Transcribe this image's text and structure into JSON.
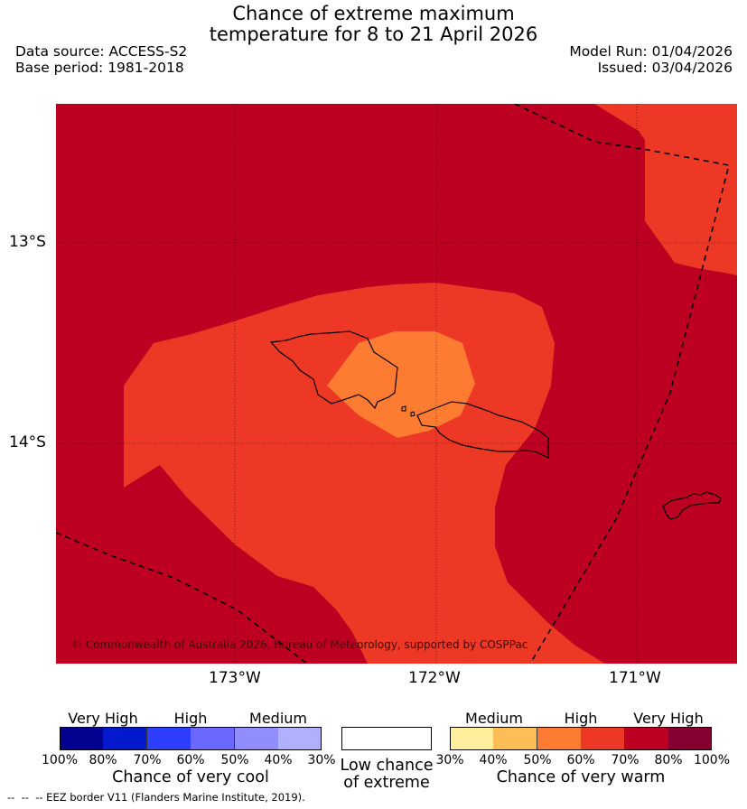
{
  "title": {
    "line1": "Chance of extreme maximum",
    "line2": "temperature for 8 to 21 April 2026"
  },
  "meta": {
    "data_source": "Data source: ACCESS-S2",
    "base_period": "Base period: 1981-2018",
    "model_run": "Model Run: 01/04/2026",
    "issued": "Issued: 03/04/2026"
  },
  "map": {
    "lat_labels": [
      "13°S",
      "14°S"
    ],
    "lon_labels": [
      "173°W",
      "172°W",
      "171°W"
    ],
    "copyright": "© Commonwealth of Australia 2026, Bureau of Meteorology, supported by COSPPac",
    "colors": {
      "very_high": "#bd0022",
      "high": "#ec3824",
      "medium": "#fe7b32"
    }
  },
  "legend_cool": {
    "categories": [
      "Very High",
      "High",
      "Medium"
    ],
    "ticks": [
      "100%",
      "80%",
      "70%",
      "60%",
      "50%",
      "40%",
      "30%"
    ],
    "colors": [
      "#02008e",
      "#0419cd",
      "#2e3eff",
      "#6a68ff",
      "#908dff",
      "#b1b0ff"
    ],
    "caption": "Chance of very cool"
  },
  "legend_low": {
    "caption_line1": "Low chance",
    "caption_line2": "of extreme",
    "color": "#ffffff"
  },
  "legend_warm": {
    "categories": [
      "Medium",
      "High",
      "Very High"
    ],
    "ticks": [
      "30%",
      "40%",
      "50%",
      "60%",
      "70%",
      "80%",
      "100%"
    ],
    "colors": [
      "#ffee9e",
      "#fdbe55",
      "#fe7b32",
      "#ec3824",
      "#bd0022",
      "#830030"
    ],
    "caption": "Chance of very warm"
  },
  "footnote": "--  --  -- EEZ border V11 (Flanders Marine Institute, 2019)."
}
